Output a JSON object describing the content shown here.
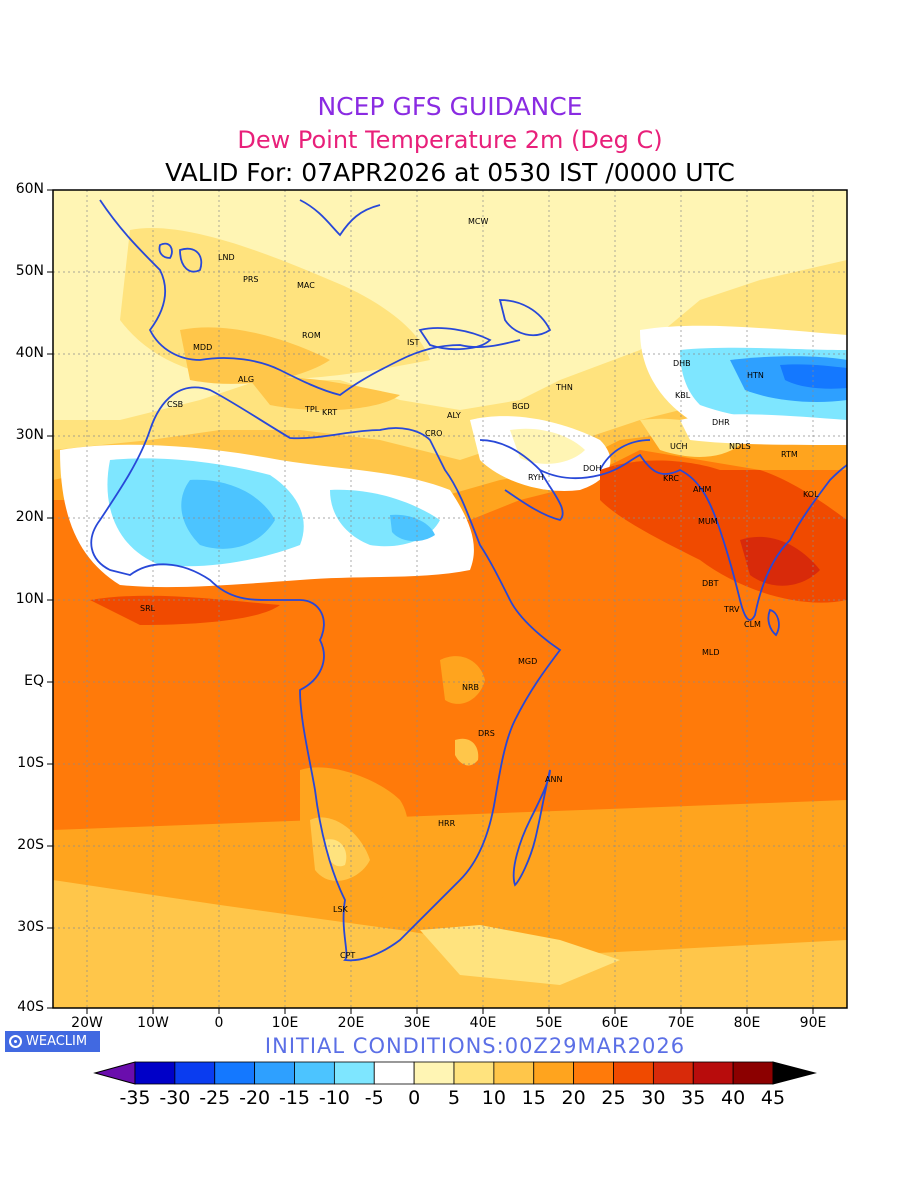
{
  "header": {
    "line1": "NCEP GFS GUIDANCE",
    "line1_color": "#8a2be2",
    "line2": "Dew Point Temperature 2m (Deg C)",
    "line2_color": "#e8207a",
    "line3": "VALID For: 07APR2026 at 0530 IST /0000 UTC"
  },
  "axes": {
    "lat_labels": [
      "60N",
      "50N",
      "40N",
      "30N",
      "20N",
      "10N",
      "EQ",
      "10S",
      "20S",
      "30S",
      "40S"
    ],
    "lon_labels": [
      "20W",
      "10W",
      "0",
      "10E",
      "20E",
      "30E",
      "40E",
      "50E",
      "60E",
      "70E",
      "80E",
      "90E"
    ]
  },
  "footer": {
    "logo_text": "WEACLIM",
    "initial_conditions": "INITIAL CONDITIONS:00Z29MAR2026"
  },
  "colorbar": {
    "labels": [
      "-35",
      "-30",
      "-25",
      "-20",
      "-15",
      "-10",
      "-5",
      "0",
      "5",
      "10",
      "15",
      "20",
      "25",
      "30",
      "35",
      "40",
      "45"
    ],
    "colors": [
      "#6a0dad",
      "#0000c8",
      "#0a3cf0",
      "#1478ff",
      "#2ea0ff",
      "#4cc4ff",
      "#7ee6ff",
      "#ffffff",
      "#fff5b4",
      "#ffe37e",
      "#ffc64a",
      "#ffa41e",
      "#ff7a0a",
      "#f04a00",
      "#d82a0a",
      "#b80c0c",
      "#8c0000",
      "#000000"
    ]
  },
  "map": {
    "stations": [
      "MCW",
      "LND",
      "PRS",
      "MAC",
      "ROM",
      "MDD",
      "IST",
      "ALG",
      "CSB",
      "TPL",
      "KRT",
      "ALY",
      "CRO",
      "BGD",
      "THN",
      "DHB",
      "HTN",
      "KBL",
      "RYH",
      "DOH",
      "UCH",
      "KRC",
      "DHR",
      "NDLS",
      "RTM",
      "AHM",
      "KOL",
      "MUM",
      "DBT",
      "TRV",
      "CLM",
      "MLD",
      "SRL",
      "MGD",
      "NRB",
      "DRS",
      "ANN",
      "HRR",
      "LSK",
      "CPT"
    ]
  }
}
